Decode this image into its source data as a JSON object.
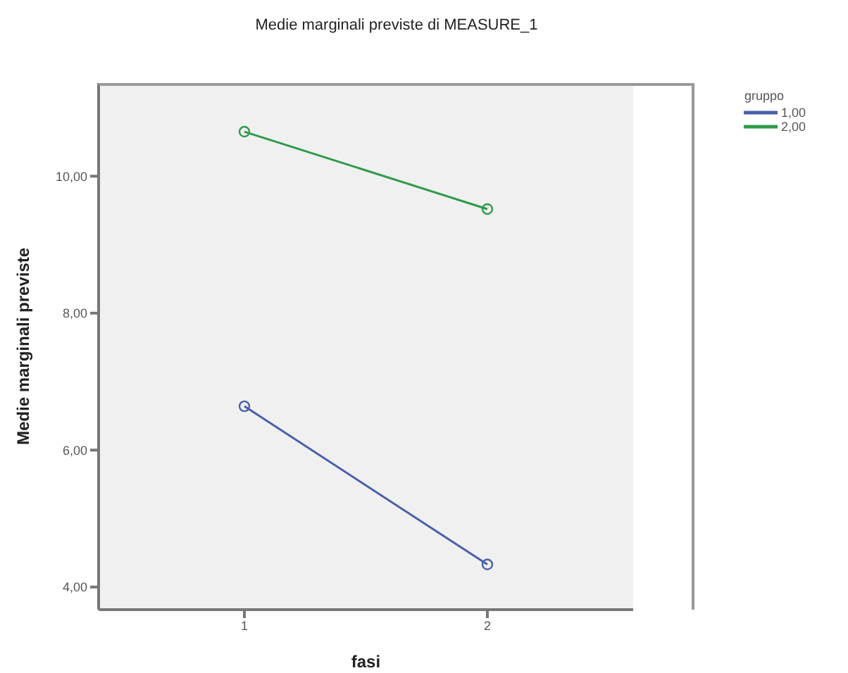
{
  "chart_data": {
    "type": "line",
    "title": "Medie marginali previste di MEASURE_1",
    "xlabel": "fasi",
    "ylabel": "Medie marginali previste",
    "legend_title": "gruppo",
    "x": [
      1,
      2
    ],
    "series": [
      {
        "name": "1,00",
        "color": "#4a5fab",
        "values": [
          6.64,
          4.33
        ]
      },
      {
        "name": "2,00",
        "color": "#2e9a4a",
        "values": [
          10.65,
          9.52
        ]
      }
    ],
    "xlim": [
      0.4,
      2.6
    ],
    "xticks": [
      1,
      2
    ],
    "ylim": [
      3.67,
      11.36
    ],
    "yticks": [
      {
        "value": 4,
        "label": "4,00"
      },
      {
        "value": 6,
        "label": "6,00"
      },
      {
        "value": 8,
        "label": "8,00"
      },
      {
        "value": 10,
        "label": "10,00"
      }
    ],
    "grid": false,
    "legend": "top right",
    "marker": "circle",
    "line_style": "solid"
  }
}
